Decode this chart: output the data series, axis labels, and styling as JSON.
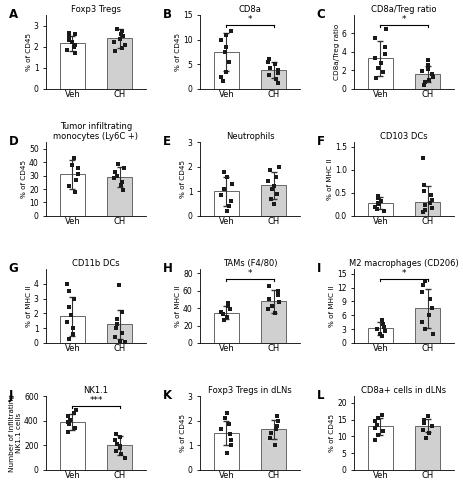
{
  "panels": [
    {
      "label": "A",
      "title": "Foxp3 Tregs",
      "ylabel": "% of CD45",
      "ylim": [
        0,
        3.5
      ],
      "yticks": [
        0,
        1,
        2,
        3
      ],
      "bar_veh": 2.15,
      "bar_ch": 2.4,
      "err_veh": 0.35,
      "err_ch": 0.45,
      "dots_veh": [
        1.7,
        1.85,
        2.0,
        2.1,
        2.2,
        2.3,
        2.45,
        2.6,
        2.65
      ],
      "dots_ch": [
        1.8,
        1.95,
        2.1,
        2.2,
        2.35,
        2.5,
        2.6,
        2.75,
        2.85
      ],
      "sig": false,
      "sig_text": ""
    },
    {
      "label": "B",
      "title": "CD8a",
      "ylabel": "% of CD45",
      "ylim": [
        0,
        15
      ],
      "yticks": [
        0,
        5,
        10,
        15
      ],
      "bar_veh": 7.5,
      "bar_ch": 3.8,
      "err_veh": 3.8,
      "err_ch": 1.6,
      "dots_veh": [
        1.5,
        2.5,
        3.5,
        5.5,
        7.5,
        8.5,
        10.0,
        11.0,
        11.8
      ],
      "dots_ch": [
        1.2,
        2.0,
        2.8,
        3.3,
        3.8,
        4.3,
        5.0,
        5.5,
        6.0
      ],
      "sig": true,
      "sig_text": "*"
    },
    {
      "label": "C",
      "title": "CD8a/Treg ratio",
      "ylabel": "CD8a/Treg ratio",
      "ylim": [
        0,
        8
      ],
      "yticks": [
        0,
        2,
        4,
        6
      ],
      "bar_veh": 3.3,
      "bar_ch": 1.6,
      "err_veh": 1.9,
      "err_ch": 0.85,
      "dots_veh": [
        1.2,
        1.8,
        2.3,
        2.8,
        3.3,
        3.8,
        4.5,
        5.5,
        6.5
      ],
      "dots_ch": [
        0.4,
        0.7,
        1.0,
        1.3,
        1.6,
        1.9,
        2.2,
        2.6,
        3.1
      ],
      "sig": true,
      "sig_text": "*"
    },
    {
      "label": "D",
      "title": "Tumor infiltrating\nmonocytes (Ly6C +)",
      "ylabel": "% of CD45",
      "ylim": [
        0,
        55
      ],
      "yticks": [
        0,
        10,
        20,
        30,
        40,
        50
      ],
      "bar_veh": 31.0,
      "bar_ch": 29.0,
      "err_veh": 11.0,
      "err_ch": 7.5,
      "dots_veh": [
        18.0,
        22.0,
        27.0,
        31.0,
        36.0,
        38.0,
        43.0
      ],
      "dots_ch": [
        19.0,
        23.0,
        25.0,
        28.0,
        30.0,
        33.0,
        36.0,
        38.5
      ],
      "sig": false,
      "sig_text": ""
    },
    {
      "label": "E",
      "title": "Neutrophils",
      "ylabel": "% of CD45",
      "ylim": [
        0,
        3
      ],
      "yticks": [
        0,
        1,
        2,
        3
      ],
      "bar_veh": 1.0,
      "bar_ch": 1.25,
      "err_veh": 0.6,
      "err_ch": 0.55,
      "dots_veh": [
        0.2,
        0.4,
        0.6,
        0.85,
        1.1,
        1.3,
        1.6,
        1.8
      ],
      "dots_ch": [
        0.5,
        0.7,
        0.9,
        1.1,
        1.2,
        1.4,
        1.6,
        1.85,
        2.0
      ],
      "sig": false,
      "sig_text": ""
    },
    {
      "label": "F",
      "title": "CD103 DCs",
      "ylabel": "% of MHC II",
      "ylim": [
        0,
        1.6
      ],
      "yticks": [
        0.0,
        0.5,
        1.0,
        1.5
      ],
      "bar_veh": 0.27,
      "bar_ch": 0.3,
      "err_veh": 0.13,
      "err_ch": 0.35,
      "dots_veh": [
        0.1,
        0.15,
        0.2,
        0.25,
        0.28,
        0.32,
        0.38,
        0.43
      ],
      "dots_ch": [
        0.08,
        0.12,
        0.18,
        0.23,
        0.28,
        0.35,
        0.45,
        0.55,
        0.68,
        1.25
      ],
      "sig": false,
      "sig_text": ""
    },
    {
      "label": "G",
      "title": "CD11b DCs",
      "ylabel": "% of MHC II",
      "ylim": [
        0,
        5
      ],
      "yticks": [
        0,
        1,
        2,
        3,
        4
      ],
      "bar_veh": 1.8,
      "bar_ch": 1.25,
      "err_veh": 1.3,
      "err_ch": 0.95,
      "dots_veh": [
        0.3,
        0.6,
        1.0,
        1.4,
        1.9,
        2.4,
        3.0,
        3.5,
        4.0
      ],
      "dots_ch": [
        0.08,
        0.15,
        0.4,
        0.7,
        1.0,
        1.3,
        1.6,
        2.1,
        3.9
      ],
      "sig": false,
      "sig_text": ""
    },
    {
      "label": "H",
      "title": "TAMs (F4/80)",
      "ylabel": "% of MHC II",
      "ylim": [
        0,
        85
      ],
      "yticks": [
        0,
        20,
        40,
        60,
        80
      ],
      "bar_veh": 35.0,
      "bar_ch": 48.0,
      "err_veh": 7.0,
      "err_ch": 13.0,
      "dots_veh": [
        26.0,
        30.0,
        33.0,
        36.0,
        39.0,
        42.0,
        46.0
      ],
      "dots_ch": [
        35.0,
        39.0,
        43.0,
        47.0,
        51.0,
        55.0,
        60.0,
        65.0
      ],
      "sig": true,
      "sig_text": "*"
    },
    {
      "label": "I",
      "title": "M2 macrophages (CD206)",
      "ylabel": "% of MHC II",
      "ylim": [
        0,
        16
      ],
      "yticks": [
        0,
        3,
        6,
        9,
        12,
        15
      ],
      "bar_veh": 3.2,
      "bar_ch": 7.5,
      "err_veh": 1.4,
      "err_ch": 4.2,
      "dots_veh": [
        1.5,
        2.0,
        2.5,
        3.0,
        3.5,
        4.0,
        5.0
      ],
      "dots_ch": [
        2.0,
        3.0,
        4.5,
        6.0,
        7.5,
        9.5,
        11.0,
        12.5,
        13.5
      ],
      "sig": true,
      "sig_text": "*"
    },
    {
      "label": "J",
      "title": "NK1.1",
      "ylabel": "Number of infiltrating\nNK1.1 cells",
      "ylim": [
        0,
        600
      ],
      "yticks": [
        0,
        200,
        400,
        600
      ],
      "bar_veh": 390.0,
      "bar_ch": 200.0,
      "err_veh": 65.0,
      "err_ch": 75.0,
      "dots_veh": [
        305.0,
        340.0,
        370.0,
        390.0,
        410.0,
        440.0,
        465.0,
        490.0
      ],
      "dots_ch": [
        100.0,
        130.0,
        155.0,
        175.0,
        195.0,
        215.0,
        240.0,
        265.0,
        290.0
      ],
      "sig": true,
      "sig_text": "***"
    },
    {
      "label": "K",
      "title": "Foxp3 Tregs in dLNs",
      "ylabel": "% of CD45",
      "ylim": [
        0,
        3
      ],
      "yticks": [
        0,
        1,
        2,
        3
      ],
      "bar_veh": 1.5,
      "bar_ch": 1.65,
      "err_veh": 0.5,
      "err_ch": 0.4,
      "dots_veh": [
        0.7,
        1.0,
        1.2,
        1.45,
        1.65,
        1.85,
        2.1,
        2.3
      ],
      "dots_ch": [
        1.0,
        1.3,
        1.5,
        1.65,
        1.8,
        2.0,
        2.2
      ],
      "sig": false,
      "sig_text": ""
    },
    {
      "label": "L",
      "title": "CD8a+ cells in dLNs",
      "ylabel": "% of CD45",
      "ylim": [
        0,
        22
      ],
      "yticks": [
        0,
        5,
        10,
        15,
        20
      ],
      "bar_veh": 13.0,
      "bar_ch": 13.2,
      "err_veh": 2.5,
      "err_ch": 2.0,
      "dots_veh": [
        9.0,
        10.5,
        11.5,
        12.5,
        13.5,
        14.5,
        15.5,
        16.5
      ],
      "dots_ch": [
        9.5,
        11.0,
        12.0,
        13.0,
        14.0,
        15.0,
        16.0
      ],
      "sig": false,
      "sig_text": ""
    }
  ],
  "bar_color_veh": "#ffffff",
  "bar_color_ch": "#d0d0d0",
  "bar_edgecolor": "#666666",
  "dot_color": "#1a1a1a",
  "error_color": "#333333",
  "bar_width": 0.52,
  "figsize": [
    4.63,
    5.0
  ],
  "dpi": 100
}
